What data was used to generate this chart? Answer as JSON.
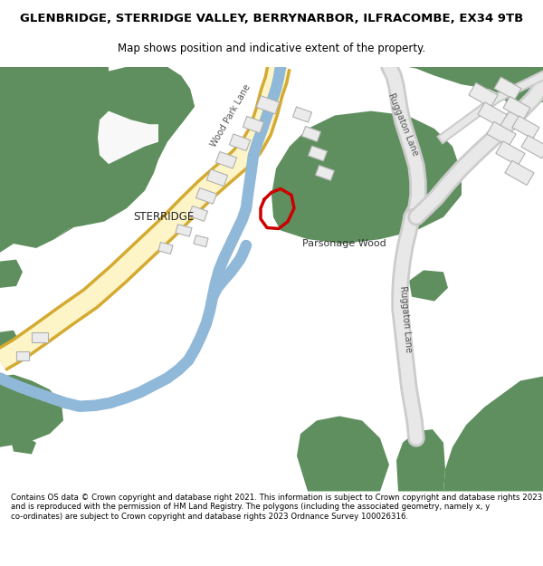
{
  "title": "GLENBRIDGE, STERRIDGE VALLEY, BERRYNARBOR, ILFRACOMBE, EX34 9TB",
  "subtitle": "Map shows position and indicative extent of the property.",
  "footer": "Contains OS data © Crown copyright and database right 2021. This information is subject to Crown copyright and database rights 2023 and is reproduced with the permission of HM Land Registry. The polygons (including the associated geometry, namely x, y co-ordinates) are subject to Crown copyright and database rights 2023 Ordnance Survey 100026316.",
  "bg_color": "#ffffff",
  "map_bg": "#f8f8f8",
  "green_color": "#5f8f5f",
  "road_yellow_fill": "#fdf5c8",
  "road_yellow_edge": "#d4aa30",
  "road_gray_fill": "#e8e8e8",
  "road_gray_edge": "#cccccc",
  "river_color": "#90b8d8",
  "plot_edge": "#cc0000",
  "text_dark": "#333333",
  "text_road": "#666666"
}
